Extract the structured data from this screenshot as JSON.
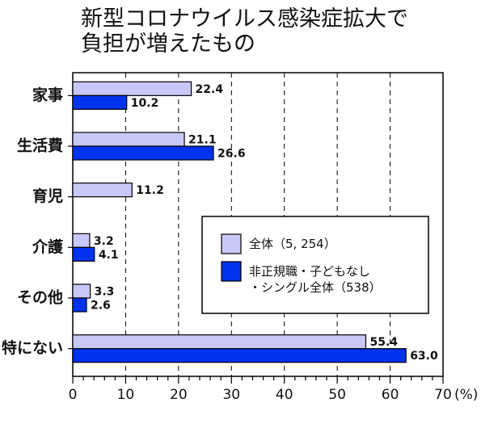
{
  "title_lines": [
    "新型コロナウイルス感染症拡大で",
    "負担が増えたもの"
  ],
  "chart_data": {
    "type": "bar",
    "orientation": "horizontal",
    "title": "新型コロナウイルス感染症拡大で負担が増えたもの",
    "categories": [
      "家事",
      "生活費",
      "育児",
      "介護",
      "その他",
      "特にない"
    ],
    "series": [
      {
        "name": "全体（5, 254）",
        "values": [
          22.4,
          21.1,
          11.2,
          3.2,
          3.3,
          55.4
        ],
        "color": "#c8c8f8"
      },
      {
        "name": "非正規職・子どもなし・シングル全体（538）",
        "values": [
          10.2,
          26.6,
          null,
          4.1,
          2.6,
          63.0
        ],
        "color": "#0033ee"
      }
    ],
    "legend_lines": [
      [
        "全体（5, 254）"
      ],
      [
        "非正規職・子どもなし",
        "・シングル全体（538）"
      ]
    ],
    "xticks": [
      0,
      10,
      20,
      30,
      40,
      50,
      60,
      70
    ],
    "xunit": "(%)",
    "xlim": [
      0,
      70
    ],
    "grid": "vertical dashed",
    "legend_position": "center-right"
  }
}
